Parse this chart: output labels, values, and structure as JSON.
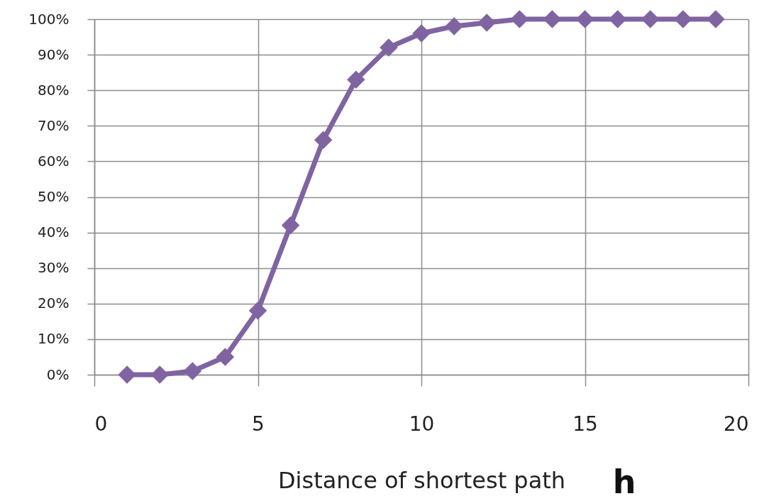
{
  "chart_data": {
    "type": "line",
    "xlabel": "Distance of shortest path",
    "annotations": [
      "h"
    ],
    "x": [
      1,
      2,
      3,
      4,
      5,
      6,
      7,
      8,
      9,
      10,
      11,
      12,
      13,
      14,
      15,
      16,
      17,
      18,
      19
    ],
    "series": [
      {
        "color": "#8064a2",
        "values": [
          0,
          0,
          1,
          5,
          18,
          42,
          66,
          83,
          92,
          96,
          98,
          99,
          100,
          100,
          100,
          100,
          100,
          100,
          100
        ]
      }
    ],
    "xlim": [
      0,
      20
    ],
    "ylim": [
      0,
      100
    ],
    "xticks": [
      0,
      5,
      10,
      15,
      20
    ],
    "yticks": [
      {
        "value": 0,
        "label": "0%"
      },
      {
        "value": 10,
        "label": "10%"
      },
      {
        "value": 20,
        "label": "20%"
      },
      {
        "value": 30,
        "label": "30%"
      },
      {
        "value": 40,
        "label": "40%"
      },
      {
        "value": 50,
        "label": "50%"
      },
      {
        "value": 60,
        "label": "60%"
      },
      {
        "value": 70,
        "label": "70%"
      },
      {
        "value": 80,
        "label": "80%"
      },
      {
        "value": 90,
        "label": "90%"
      },
      {
        "value": 100,
        "label": "100%"
      }
    ],
    "grid": true,
    "marker": "diamond",
    "line_style": "solid"
  }
}
